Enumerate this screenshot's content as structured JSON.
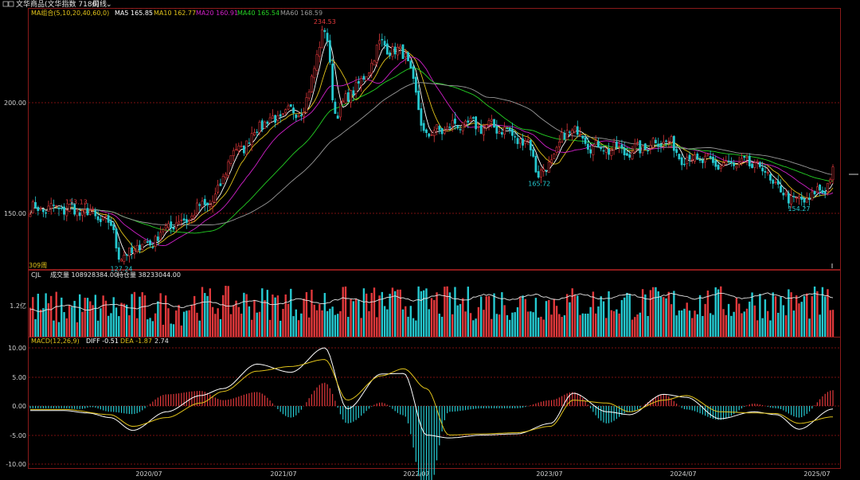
{
  "window": {
    "title": "文华商品(文华指数 7186)",
    "period": "周线",
    "period_arrow": "⌄"
  },
  "colors": {
    "up": "#e0383b",
    "down": "#25c9d0",
    "ma5": "#ffffff",
    "ma10": "#e0c21a",
    "ma20": "#d020c8",
    "ma40": "#24d024",
    "ma60": "#9a9a9a",
    "grid": "#7a1010",
    "axis_text": "#d0d0d0"
  },
  "price_panel": {
    "legend_title": "MA组合(5,10,20,40,60,0)",
    "ma_labels": [
      {
        "name": "MA5",
        "value": "165.85",
        "color_key": "ma5"
      },
      {
        "name": "MA10",
        "value": "162.77",
        "color_key": "ma10"
      },
      {
        "name": "MA20",
        "value": "160.91",
        "color_key": "ma20"
      },
      {
        "name": "MA40",
        "value": "165.54",
        "color_key": "ma40"
      },
      {
        "name": "MA60",
        "value": "168.59",
        "color_key": "ma60"
      }
    ],
    "period_note": "309周",
    "y_ticks": [
      "200.00",
      "150.00"
    ]
  },
  "volume_panel": {
    "title": "CJL",
    "volume_label": "成交量",
    "volume_value": "108928384.00",
    "oi_label": "持仓量",
    "oi_value": "38233044.00",
    "y_tick": "1.2亿"
  },
  "macd_panel": {
    "title": "MACD(12,26,9)",
    "diff_label": "DIFF",
    "diff_value": "-0.51",
    "dea_label": "DEA",
    "dea_value": "-1.87",
    "macd_value": "2.74",
    "y_ticks": [
      "10.00",
      "5.00",
      "0.00",
      "-5.00",
      "-10.00"
    ]
  },
  "x_axis": {
    "labels": [
      "2020/07",
      "2021/07",
      "2022/07",
      "2023/07",
      "2024/07",
      "2025/07"
    ]
  },
  "chart_data": {
    "type": "candlestick",
    "series_name": "文华商品(文华指数 7186)",
    "frequency": "weekly",
    "bars_shown": 309,
    "price_ylim": [
      127.24,
      234.53
    ],
    "annotations": [
      {
        "label": "153.13",
        "x": "2019/12",
        "y": 153.13
      },
      {
        "label": "127.24",
        "x": "2020/04",
        "y": 127.24
      },
      {
        "label": "234.53",
        "x": "2021/10",
        "y": 234.53
      },
      {
        "label": "165.72",
        "x": "2023/05",
        "y": 165.72
      },
      {
        "label": "154.27",
        "x": "2025/04",
        "y": 154.27
      }
    ],
    "close_path": {
      "x": [
        "2019/11",
        "2020/01",
        "2020/03",
        "2020/04",
        "2020/06",
        "2020/09",
        "2020/12",
        "2021/02",
        "2021/05",
        "2021/08",
        "2021/10",
        "2021/11",
        "2022/01",
        "2022/03",
        "2022/05",
        "2022/07",
        "2022/10",
        "2023/01",
        "2023/04",
        "2023/05",
        "2023/08",
        "2023/10",
        "2024/01",
        "2024/04",
        "2024/06",
        "2024/09",
        "2024/12",
        "2025/03",
        "2025/04",
        "2025/06",
        "2025/07"
      ],
      "y": [
        152,
        150,
        145,
        130,
        136,
        146,
        155,
        178,
        192,
        197,
        232,
        196,
        208,
        226,
        222,
        186,
        190,
        189,
        182,
        168,
        188,
        180,
        178,
        183,
        175,
        172,
        172,
        158,
        155,
        160,
        168
      ]
    },
    "moving_averages": {
      "MA5": 165.85,
      "MA10": 162.77,
      "MA20": 160.91,
      "MA40": 165.54,
      "MA60": 168.59
    },
    "volume": {
      "last_volume": 108928384.0,
      "last_open_interest": 38233044.0,
      "ytick": "1.2亿"
    },
    "macd": {
      "params": [
        12,
        26,
        9
      ],
      "DIFF": -0.51,
      "DEA": -1.87,
      "MACD": 2.74,
      "ylim": [
        -10,
        10
      ],
      "diff_path": {
        "x": [
          "2019/11",
          "2020/01",
          "2020/03",
          "2020/05",
          "2020/08",
          "2020/11",
          "2021/01",
          "2021/04",
          "2021/07",
          "2021/10",
          "2021/12",
          "2022/03",
          "2022/05",
          "2022/07",
          "2022/09",
          "2022/12",
          "2023/03",
          "2023/06",
          "2023/08",
          "2023/11",
          "2024/01",
          "2024/04",
          "2024/06",
          "2024/09",
          "2024/12",
          "2025/02",
          "2025/04",
          "2025/07"
        ],
        "y": [
          -0.8,
          -1.2,
          -2.0,
          -4.2,
          -1.0,
          1.8,
          3.0,
          7.2,
          5.8,
          10.0,
          -0.5,
          5.5,
          5.6,
          -5.0,
          -5.5,
          -5.0,
          -4.8,
          -3.0,
          2.2,
          -1.0,
          -1.5,
          2.0,
          1.5,
          -2.2,
          -1.0,
          -1.5,
          -4.0,
          -0.51
        ]
      },
      "dea_path": {
        "x": [
          "2019/11",
          "2020/03",
          "2020/05",
          "2020/08",
          "2020/11",
          "2021/01",
          "2021/04",
          "2021/07",
          "2021/10",
          "2021/12",
          "2022/03",
          "2022/05",
          "2022/07",
          "2022/09",
          "2022/12",
          "2023/03",
          "2023/06",
          "2023/08",
          "2023/11",
          "2024/01",
          "2024/04",
          "2024/06",
          "2024/09",
          "2024/12",
          "2025/02",
          "2025/04",
          "2025/07"
        ],
        "y": [
          -0.6,
          -1.5,
          -3.5,
          -2.0,
          0.5,
          2.5,
          6.0,
          6.8,
          8.0,
          1.0,
          5.2,
          6.4,
          3.0,
          -5.0,
          -4.8,
          -4.6,
          -3.5,
          1.0,
          0.5,
          -1.0,
          1.0,
          1.8,
          -1.0,
          -1.2,
          -1.3,
          -3.0,
          -1.87
        ]
      }
    }
  }
}
